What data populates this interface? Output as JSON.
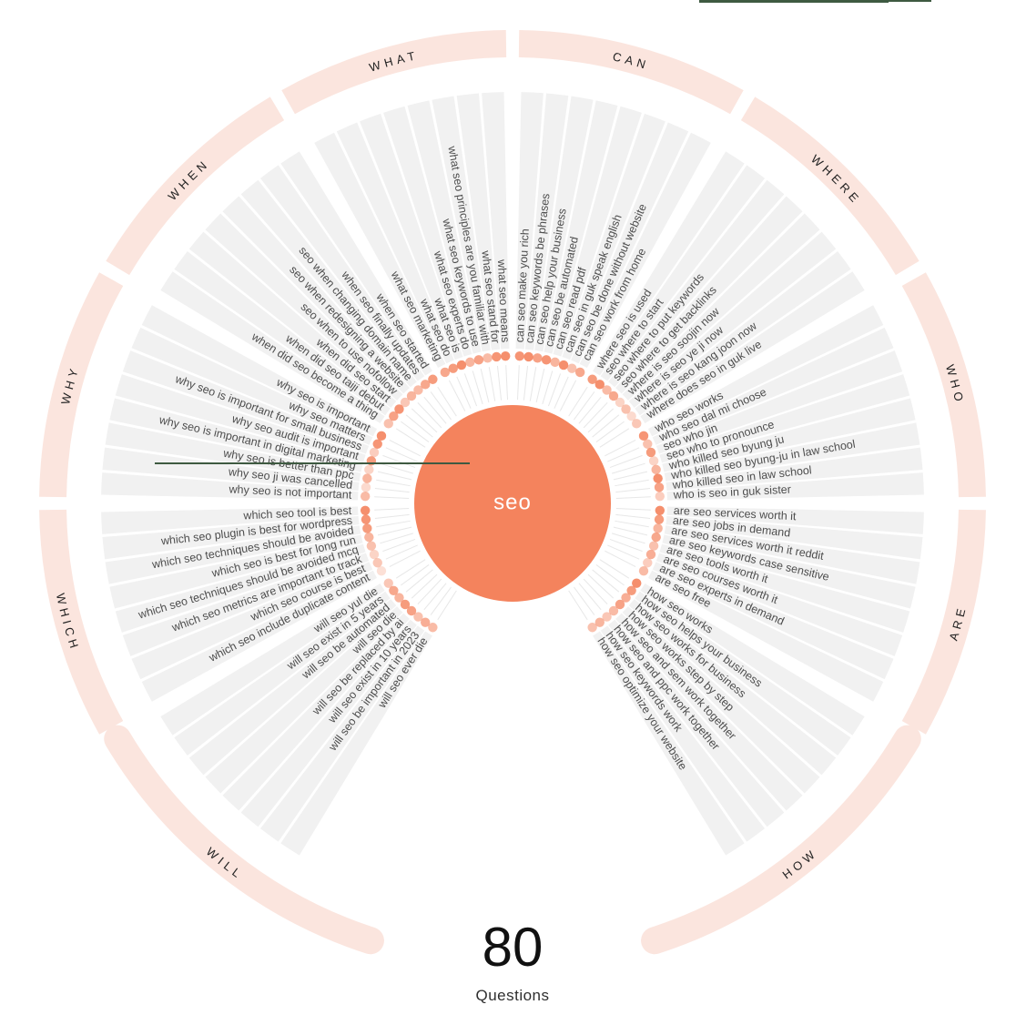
{
  "center": {
    "keyword": "seo"
  },
  "summary": {
    "count": "80",
    "label": "Questions"
  },
  "colors": {
    "accent": "#F4835D",
    "ring_band": "#FBE5DE",
    "wedge": "#F1F1F1",
    "spoke": "#E7E7E7",
    "question_text": "#4D4D4D",
    "section_label": "#222222",
    "center_text": "#FFFFFF",
    "artifact_green": "#3E5A41"
  },
  "chart_data": {
    "type": "radial-question-wheel",
    "title": "seo",
    "total_questions": 80,
    "layout": {
      "bottom_gap_degrees": 60,
      "section_span_degrees": 30
    },
    "sections": [
      {
        "name": "CAN",
        "start": 0,
        "end": 30,
        "ring_start": 0.8,
        "ring_end": 29.2,
        "rounded_cap": false,
        "questions": [
          {
            "text": "can seo make you rich",
            "weight": 0.85
          },
          {
            "text": "can seo keywords be phrases",
            "weight": 0.9
          },
          {
            "text": "can seo help your business",
            "weight": 0.75
          },
          {
            "text": "can seo be automated",
            "weight": 0.85
          },
          {
            "text": "can seo read pdf",
            "weight": 0.6
          },
          {
            "text": "can seo in guk speak english",
            "weweight": 0.9,
            "weight": 0.9
          },
          {
            "text": "can seo be done without website",
            "weight": 0.5
          },
          {
            "text": "can seo work from home",
            "weight": 0.7
          }
        ]
      },
      {
        "name": "WHERE",
        "start": 30,
        "end": 60,
        "ring_start": 30.8,
        "ring_end": 59.2,
        "rounded_cap": false,
        "questions": [
          {
            "text": "where seo is used",
            "weight": 0.8
          },
          {
            "text": "seo where to start",
            "weight": 0.9
          },
          {
            "text": "seo where to put keywords",
            "weight": 0.55
          },
          {
            "text": "seo where to get backlinks",
            "weight": 0.7
          },
          {
            "text": "where is seo soojin now",
            "weight": 0.35
          },
          {
            "text": "where is seo ye ji now",
            "weight": 0.5
          },
          {
            "text": "where is seo kang joon now",
            "weight": 0.3
          },
          {
            "text": "where does seo in guk live",
            "weight": 0.45
          }
        ]
      },
      {
        "name": "WHO",
        "start": 60,
        "end": 90,
        "ring_start": 60.8,
        "ring_end": 89.2,
        "rounded_cap": false,
        "questions": [
          {
            "text": "who seo works",
            "weight": 0.85
          },
          {
            "text": "who seo dal mi choose",
            "weight": 0.5
          },
          {
            "text": "seo who jin",
            "weight": 0.8
          },
          {
            "text": "seo who to pronounce",
            "weight": 0.35
          },
          {
            "text": "who killed seo byung ju",
            "weight": 0.6
          },
          {
            "text": "who killed seo byung-ju in law school",
            "weight": 0.9
          },
          {
            "text": "who killed seo in law school",
            "weight": 0.75
          },
          {
            "text": "who is seo in guk sister",
            "weight": 0.4
          }
        ]
      },
      {
        "name": "ARE",
        "start": 90,
        "end": 120,
        "ring_start": 90.8,
        "ring_end": 119.2,
        "rounded_cap": false,
        "questions": [
          {
            "text": "are seo services worth it",
            "weight": 0.9
          },
          {
            "text": "are seo jobs in demand",
            "weight": 0.8
          },
          {
            "text": "are seo services worth it reddit",
            "weight": 0.6
          },
          {
            "text": "are seo keywords case sensitive",
            "weight": 0.7
          },
          {
            "text": "are seo tools worth it",
            "weight": 0.5
          },
          {
            "text": "are seo courses worth it",
            "weight": 0.65
          },
          {
            "text": "are seo experts in demand",
            "weight": 0.4
          },
          {
            "text": "are seo free",
            "weight": 0.55
          }
        ]
      },
      {
        "name": "HOW",
        "start": 120,
        "end": 150,
        "ring_start": 120.8,
        "ring_end": 162,
        "rounded_cap": true,
        "questions": [
          {
            "text": "how seo works",
            "weight": 0.9
          },
          {
            "text": "how seo helps your business",
            "weight": 0.8
          },
          {
            "text": "how seo works for business",
            "weight": 0.65
          },
          {
            "text": "how seo works step by step",
            "weight": 0.75
          },
          {
            "text": "how seo and sem work together",
            "weight": 0.55
          },
          {
            "text": "how seo and ppc work together",
            "weight": 0.45
          },
          {
            "text": "how seo keywords work",
            "weight": 0.6
          },
          {
            "text": "how seo optimize your website",
            "weight": 0.5
          }
        ]
      },
      {
        "name": "WILL",
        "start": 210,
        "end": 240,
        "ring_start": 198,
        "ring_end": 239.2,
        "rounded_cap": true,
        "questions": [
          {
            "text": "will seo ever die",
            "weight": 0.55
          },
          {
            "text": "will seo be important in 2023",
            "weight": 0.65
          },
          {
            "text": "will seo exist in 10 years",
            "weight": 0.5
          },
          {
            "text": "will seo be replaced by ai",
            "weight": 0.75
          },
          {
            "text": "will seo die",
            "weight": 0.8
          },
          {
            "text": "will seo be automated",
            "weight": 0.6
          },
          {
            "text": "will seo exist in 5 years",
            "weight": 0.7
          },
          {
            "text": "will seo yul die",
            "weight": 0.45
          }
        ]
      },
      {
        "name": "WHICH",
        "start": 240,
        "end": 270,
        "ring_start": 240.8,
        "ring_end": 269.2,
        "rounded_cap": false,
        "questions": [
          {
            "text": "which seo include duplicate content",
            "weight": 0.25
          },
          {
            "text": "which seo course is best",
            "weight": 0.45
          },
          {
            "text": "which seo metrics are important to track",
            "weight": 0.35
          },
          {
            "text": "which seo techniques should be avoided mcq",
            "weight": 0.5
          },
          {
            "text": "which seo is best for long run",
            "weight": 0.6
          },
          {
            "text": "which seo techniques should be avoided",
            "weight": 0.8
          },
          {
            "text": "which seo plugin is best for wordpress",
            "weight": 0.85
          },
          {
            "text": "which seo tool is best",
            "weight": 0.9
          }
        ]
      },
      {
        "name": "WHY",
        "start": 270,
        "end": 300,
        "ring_start": 270.8,
        "ring_end": 299.2,
        "rounded_cap": false,
        "questions": [
          {
            "text": "why seo is not important",
            "weight": 0.55
          },
          {
            "text": "why seo ji was cancelled",
            "weight": 0.3
          },
          {
            "text": "why seo is better than ppc",
            "weight": 0.6
          },
          {
            "text": "why seo is important in digital marketing",
            "weight": 0.35
          },
          {
            "text": "why seo audit is important",
            "weight": 0.8
          },
          {
            "text": "why seo is important for small business",
            "weight": 0.4
          },
          {
            "text": "why seo matters",
            "weight": 0.85
          },
          {
            "text": "why seo is important",
            "weight": 0.9
          }
        ]
      },
      {
        "name": "WHEN",
        "start": 300,
        "end": 330,
        "ring_start": 300.8,
        "ring_end": 329.2,
        "rounded_cap": false,
        "questions": [
          {
            "text": "when did seo become a thing",
            "weight": 0.5
          },
          {
            "text": "when did seo taiji debut",
            "weight": 0.75
          },
          {
            "text": "when did seo start",
            "weight": 0.85
          },
          {
            "text": "seo when to use nofollow",
            "weight": 0.45
          },
          {
            "text": "seo when redesigning a website",
            "weight": 0.6
          },
          {
            "text": "seo when changing domain name",
            "weight": 0.55
          },
          {
            "text": "when seo finally updates",
            "weight": 0.7
          },
          {
            "text": "when seo started",
            "weight": 0.8
          }
        ]
      },
      {
        "name": "WHAT",
        "start": 330,
        "end": 360,
        "ring_start": 330.8,
        "ring_end": 359.2,
        "rounded_cap": false,
        "questions": [
          {
            "text": "what seo marketing",
            "weight": 0.7
          },
          {
            "text": "what seo do",
            "weight": 0.8
          },
          {
            "text": "what seo is",
            "weight": 0.9
          },
          {
            "text": "what seo experts do",
            "weight": 0.6
          },
          {
            "text": "what seo keywords to use",
            "weight": 0.75
          },
          {
            "text": "what seo principles are you familiar with",
            "weight": 0.55
          },
          {
            "text": "what seo stand for",
            "weight": 0.85
          },
          {
            "text": "what seo means",
            "weight": 0.9
          }
        ]
      }
    ]
  }
}
